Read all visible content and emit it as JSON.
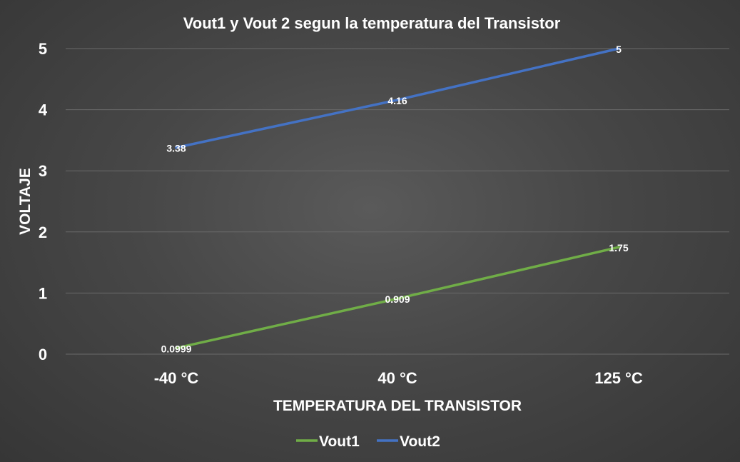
{
  "chart_data": {
    "type": "line",
    "title": "Vout1 y Vout 2 segun la temperatura del Transistor",
    "xlabel": "TEMPERATURA DEL TRANSISTOR",
    "ylabel": "VOLTAJE",
    "categories": [
      "-40 °C",
      "40 °C",
      "125 °C"
    ],
    "ylim": [
      0,
      5
    ],
    "yticks": [
      "0",
      "1",
      "2",
      "3",
      "4",
      "5"
    ],
    "grid": true,
    "legend_position": "bottom",
    "series": [
      {
        "name": "Vout1",
        "color": "#70ad47",
        "values": [
          0.0999,
          0.909,
          1.75
        ],
        "labels": [
          "0.0999",
          "0.909",
          "1.75"
        ]
      },
      {
        "name": "Vout2",
        "color": "#4472c4",
        "values": [
          3.38,
          4.16,
          5
        ],
        "labels": [
          "3.38",
          "4.16",
          "5"
        ]
      }
    ]
  }
}
